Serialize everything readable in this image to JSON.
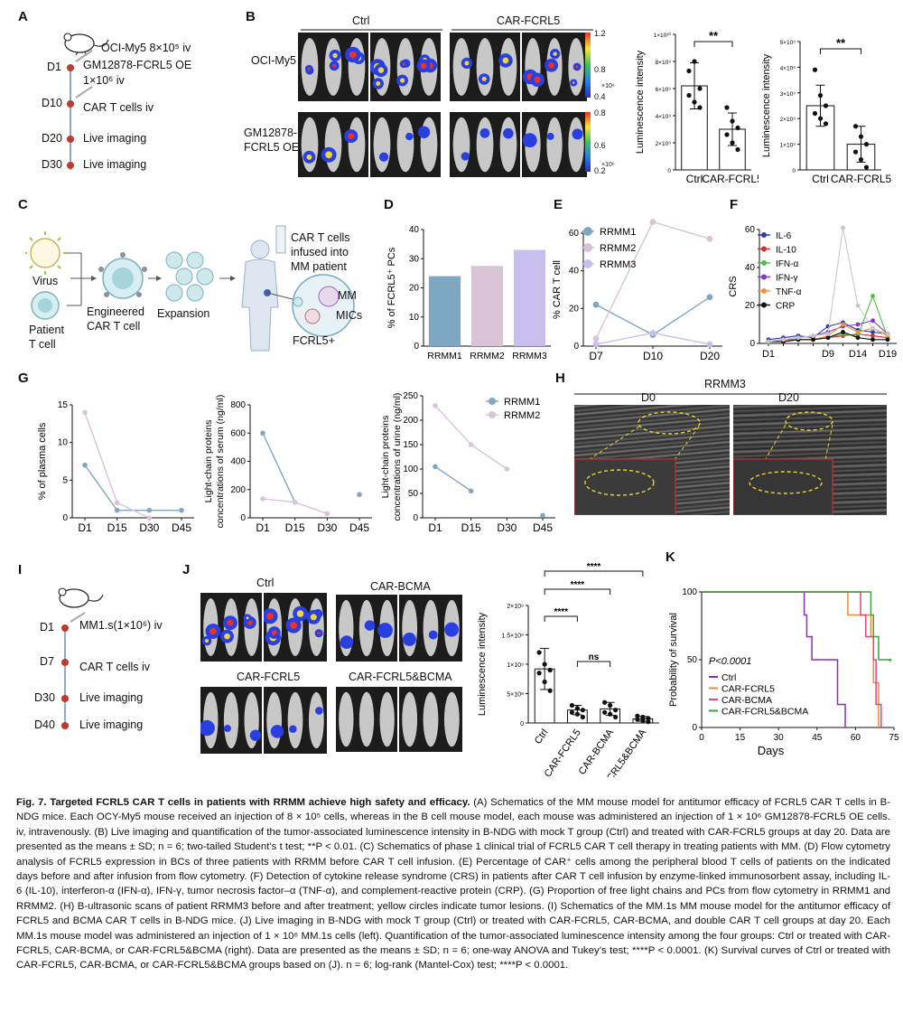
{
  "panels": {
    "A": "A",
    "B": "B",
    "C": "C",
    "D": "D",
    "E": "E",
    "F": "F",
    "G": "G",
    "H": "H",
    "I": "I",
    "J": "J",
    "K": "K"
  },
  "panelA": {
    "inject1": "OCI-My5 8×10⁵ iv",
    "inject2": "GM12878-FCRL5 OE",
    "inject3": "1×10⁶ iv",
    "timeline": [
      {
        "day": "D1",
        "event": ""
      },
      {
        "day": "D10",
        "event": "CAR T cells iv"
      },
      {
        "day": "D20",
        "event": "Live imaging"
      },
      {
        "day": "D30",
        "event": "Live imaging"
      }
    ]
  },
  "panelB": {
    "group_ctrl": "Ctrl",
    "group_car": "CAR-FCRL5",
    "row1": "OCI-My5",
    "row2a": "GM12878-",
    "row2b": "FCRL5 OE",
    "scale1": {
      "max": "1.2",
      "mid": "0.8",
      "min": "0.4",
      "unit": "×10⁶"
    },
    "scale2": {
      "max": "0.8",
      "mid": "0.6",
      "min": "0.2",
      "unit": "×10⁶"
    },
    "sig": "**"
  },
  "panelC": {
    "virus": "Virus",
    "patient1": "Patient",
    "patient2": "T cell",
    "engineered1": "Engineered",
    "engineered2": "CAR T cell",
    "expansion": "Expansion",
    "infused1": "CAR T cells",
    "infused2": "infused into",
    "infused3": "MM patient",
    "mm": "MM",
    "mics": "MICs",
    "fcrl5": "FCRL5+"
  },
  "panelH": {
    "title": "RRMM3",
    "d0": "D0",
    "d20": "D20"
  },
  "panelI": {
    "inject": "MM1.s(1×10⁶) iv",
    "timeline": [
      {
        "day": "D1",
        "event": ""
      },
      {
        "day": "D7",
        "event": "CAR T cells iv"
      },
      {
        "day": "D30",
        "event": "Live imaging"
      },
      {
        "day": "D40",
        "event": "Live imaging"
      }
    ]
  },
  "panelJ": {
    "ctrl": "Ctrl",
    "bcma": "CAR-BCMA",
    "fcrl5": "CAR-FCRL5",
    "both": "CAR-FCRL5&BCMA"
  },
  "chart_data": [
    {
      "id": "B1",
      "type": "bar",
      "categories": [
        "Ctrl",
        "CAR-FCRL5"
      ],
      "values": [
        6200000000.0,
        3000000000.0
      ],
      "points": [
        [
          7300000000.0,
          8000000000.0,
          6000000000.0,
          5500000000.0,
          5000000000.0,
          4600000000.0
        ],
        [
          4600000000.0,
          3600000000.0,
          3100000000.0,
          2600000000.0,
          2000000000.0,
          1500000000.0
        ]
      ],
      "errors": [
        1700000000.0,
        1200000000.0
      ],
      "ylabel": "Luminescence intensity",
      "ylim": [
        0,
        10000000000.0
      ],
      "yticks": [
        "0",
        "2×10⁹",
        "4×10⁹",
        "6×10⁹",
        "8×10⁹",
        "1×10¹⁰"
      ],
      "sig": "**"
    },
    {
      "id": "B2",
      "type": "bar",
      "categories": [
        "Ctrl",
        "CAR-FCRL5"
      ],
      "values": [
        2500000000.0,
        1000000000.0
      ],
      "points": [
        [
          3900000000.0,
          2900000000.0,
          2500000000.0,
          2200000000.0,
          2000000000.0,
          1800000000.0
        ],
        [
          1700000000.0,
          1300000000.0,
          1000000000.0,
          700000000.0,
          400000000.0,
          100000000.0
        ]
      ],
      "errors": [
        800000000.0,
        700000000.0
      ],
      "ylabel": "Luminescence intensity",
      "ylim": [
        0,
        5000000000.0
      ],
      "yticks": [
        "0",
        "1×10⁹",
        "2×10⁹",
        "3×10⁹",
        "4×10⁹",
        "5×10⁹"
      ],
      "sig": "**"
    },
    {
      "id": "D",
      "type": "bar",
      "categories": [
        "RRMM1",
        "RRMM2",
        "RRMM3"
      ],
      "values": [
        24,
        27.5,
        33
      ],
      "colors": [
        "#7fa7c2",
        "#d9c4d6",
        "#c9bfee"
      ],
      "ylabel": "% of FCRL5⁺ PCs",
      "ylim": [
        0,
        40
      ],
      "yticks": [
        "0",
        "10",
        "20",
        "30",
        "40"
      ]
    },
    {
      "id": "E",
      "type": "line",
      "x": [
        "D7",
        "D10",
        "D20"
      ],
      "ylabel": "% CAR T cell",
      "ylim": [
        0,
        60
      ],
      "yticks": [
        "0",
        "20",
        "40",
        "60"
      ],
      "series": [
        {
          "name": "RRMM1",
          "values": [
            22,
            6,
            26
          ],
          "color": "#7fa7c2"
        },
        {
          "name": "RRMM2",
          "values": [
            4,
            66,
            57
          ],
          "color": "#d9c4d6"
        },
        {
          "name": "RRMM3",
          "values": [
            1,
            7,
            1
          ],
          "color": "#c9bfee"
        }
      ]
    },
    {
      "id": "F",
      "type": "line",
      "x": [
        "D1",
        "D3",
        "D5",
        "D7",
        "D9",
        "D11",
        "D14",
        "D16",
        "D19"
      ],
      "xticks": [
        "D1",
        "D9",
        "D14",
        "D19"
      ],
      "ylabel": "CRS",
      "ylim": [
        0,
        60
      ],
      "yticks": [
        "0",
        "20",
        "40",
        "60"
      ],
      "series": [
        {
          "name": "IL-6",
          "values": [
            2,
            3,
            4,
            3,
            9,
            11,
            7,
            6,
            5
          ],
          "color": "#2b3bb0"
        },
        {
          "name": "IL-10",
          "values": [
            1,
            2,
            2,
            2,
            3,
            4,
            5,
            4,
            3
          ],
          "color": "#d9302a"
        },
        {
          "name": "IFN-α",
          "values": [
            1,
            1,
            2,
            2,
            3,
            5,
            4,
            25,
            3
          ],
          "color": "#4fbf45"
        },
        {
          "name": "IFN-γ",
          "values": [
            1,
            2,
            3,
            4,
            6,
            9,
            10,
            12,
            5
          ],
          "color": "#7a3fc2"
        },
        {
          "name": "TNF-α",
          "values": [
            1,
            1,
            2,
            2,
            4,
            10,
            6,
            8,
            4
          ],
          "color": "#f09235"
        },
        {
          "name": "CRP",
          "values": [
            1,
            1,
            2,
            2,
            3,
            6,
            3,
            2,
            2
          ],
          "color": "#111111"
        },
        {
          "name": "",
          "values": [
            1,
            2,
            3,
            4,
            5,
            61,
            20,
            8,
            5
          ],
          "color": "#c7c7c7"
        }
      ]
    },
    {
      "id": "G1",
      "type": "line",
      "x": [
        "D1",
        "D15",
        "D30",
        "D45"
      ],
      "ylabel": "% of plasma cells",
      "ylim": [
        0,
        15
      ],
      "yticks": [
        "0",
        "5",
        "10",
        "15"
      ],
      "series": [
        {
          "name": "RRMM1",
          "values": [
            7,
            1,
            1,
            1
          ],
          "color": "#7fa7c2"
        },
        {
          "name": "RRMM2",
          "values": [
            14,
            2,
            0,
            null
          ],
          "color": "#d9c4d6"
        }
      ]
    },
    {
      "id": "G2",
      "type": "line",
      "x": [
        "D1",
        "D15",
        "D30",
        "D45"
      ],
      "ylabel": "Light-chain proteins concentrations of serum (ng/ml)",
      "ylim": [
        0,
        800
      ],
      "yticks": [
        "0",
        "200",
        "400",
        "600",
        "800"
      ],
      "series": [
        {
          "name": "RRMM1",
          "values": [
            600,
            110,
            null,
            165
          ],
          "color": "#7fa7c2"
        },
        {
          "name": "RRMM2",
          "values": [
            135,
            110,
            30,
            null
          ],
          "color": "#d9c4d6"
        }
      ]
    },
    {
      "id": "G3",
      "type": "line",
      "x": [
        "D1",
        "D15",
        "D30",
        "D45"
      ],
      "ylabel": "Light-chain proteins concentrations of urine (ng/ml)",
      "ylim": [
        0,
        250
      ],
      "yticks": [
        "0",
        "50",
        "100",
        "150",
        "200",
        "250"
      ],
      "series": [
        {
          "name": "RRMM1",
          "values": [
            105,
            55,
            null,
            5
          ],
          "color": "#7fa7c2"
        },
        {
          "name": "RRMM2",
          "values": [
            230,
            150,
            100,
            null
          ],
          "color": "#d9c4d6"
        }
      ]
    },
    {
      "id": "J",
      "type": "bar",
      "categories": [
        "Ctrl",
        "CAR-FCRL5",
        "CAR-BCMA",
        "CAR-FCRL5&BCMA"
      ],
      "values": [
        920000000.0,
        220000000.0,
        240000000.0,
        70000000.0
      ],
      "errors": [
        350000000.0,
        80000000.0,
        110000000.0,
        40000000.0
      ],
      "points": [
        [
          1200000000.0,
          1000000000.0,
          900000000.0,
          850000000.0,
          700000000.0,
          550000000.0
        ],
        [
          300000000.0,
          250000000.0,
          220000000.0,
          180000000.0,
          150000000.0,
          100000000.0
        ],
        [
          350000000.0,
          300000000.0,
          220000000.0,
          180000000.0,
          150000000.0,
          100000000.0
        ],
        [
          120000000.0,
          100000000.0,
          80000000.0,
          60000000.0,
          40000000.0,
          20000000.0
        ]
      ],
      "ylabel": "Luminescence intensity",
      "ylim": [
        0,
        2000000000.0
      ],
      "yticks": [
        "0",
        "5×10⁸",
        "1×10⁹",
        "1.5×10⁹",
        "2×10⁹"
      ],
      "sigs": [
        "****",
        "****",
        "****",
        "ns"
      ]
    },
    {
      "id": "K",
      "type": "line",
      "xlabel": "Days",
      "ylabel": "Probability of survival",
      "xlim": [
        0,
        75
      ],
      "ylim": [
        0,
        100
      ],
      "xticks": [
        "0",
        "15",
        "30",
        "45",
        "60",
        "75"
      ],
      "yticks": [
        "0",
        "50",
        "100"
      ],
      "annotation": "P<0.0001",
      "series": [
        {
          "name": "Ctrl",
          "color": "#8a2fb5",
          "steps": [
            [
              0,
              100
            ],
            [
              40,
              100
            ],
            [
              40,
              83
            ],
            [
              41,
              83
            ],
            [
              41,
              67
            ],
            [
              43,
              67
            ],
            [
              43,
              50
            ],
            [
              53,
              50
            ],
            [
              53,
              17
            ],
            [
              56,
              17
            ],
            [
              56,
              0
            ]
          ]
        },
        {
          "name": "CAR-FCRL5",
          "color": "#f0883a",
          "steps": [
            [
              0,
              100
            ],
            [
              57,
              100
            ],
            [
              57,
              83
            ],
            [
              66,
              83
            ],
            [
              66,
              67
            ],
            [
              67,
              67
            ],
            [
              67,
              33
            ],
            [
              69,
              33
            ],
            [
              69,
              0
            ]
          ]
        },
        {
          "name": "CAR-BCMA",
          "color": "#e0457a",
          "steps": [
            [
              0,
              100
            ],
            [
              62,
              100
            ],
            [
              62,
              83
            ],
            [
              64,
              83
            ],
            [
              64,
              67
            ],
            [
              67,
              67
            ],
            [
              67,
              50
            ],
            [
              68,
              50
            ],
            [
              68,
              17
            ],
            [
              70,
              17
            ],
            [
              70,
              0
            ]
          ]
        },
        {
          "name": "CAR-FCRL5&BCMA",
          "color": "#3aa33a",
          "steps": [
            [
              0,
              100
            ],
            [
              66,
              100
            ],
            [
              66,
              83
            ],
            [
              67,
              83
            ],
            [
              67,
              67
            ],
            [
              69,
              67
            ],
            [
              69,
              50
            ],
            [
              74,
              50
            ]
          ]
        }
      ]
    }
  ],
  "caption": {
    "title": "Fig. 7. Targeted FCRL5 CAR T cells in patients with RRMM achieve high safety and efficacy.",
    "body": " (A) Schematics of the MM mouse model for antitumor efficacy of FCRL5 CAR T cells in B-NDG mice. Each OCY-My5 mouse received an injection of 8 × 10⁵ cells, whereas in the B cell mouse model, each mouse was administered an injection of 1 × 10⁶ GM12878-FCRL5 OE cells. iv, intravenously. (B) Live imaging and quantification of the tumor-associated luminescence intensity in B-NDG with mock T group (Ctrl) and treated with CAR-FCRL5 groups at day 20. Data are presented as the means ± SD; n = 6; two-tailed Student’s t test; **P < 0.01. (C) Schematics of phase 1 clinical trial of FCRL5 CAR T cell therapy in treating patients with MM. (D) Flow cytometry analysis of FCRL5 expression in BCs of three patients with RRMM before CAR T cell infusion. (E) Percentage of CAR⁺ cells among the peripheral blood T cells of patients on the indicated days before and after infusion from flow cytometry. (F) Detection of cytokine release syndrome (CRS) in patients after CAR T cell infusion by enzyme-linked immunosorbent assay, including IL-6 (IL-10), interferon-α (IFN-α), IFN-γ, tumor necrosis factor–α (TNF-α), and complement-reactive protein (CRP). (G) Proportion of free light chains and PCs from flow cytometry in RRMM1 and RRMM2. (H) B-ultrasonic scans of patient RRMM3 before and after treatment; yellow circles indicate tumor lesions. (I) Schematics of the MM.1s MM mouse model for the antitumor efficacy of FCRL5 and BCMA CAR T cells in B-NDG mice. (J) Live imaging in B-NDG with mock T group (Ctrl) or treated with CAR-FCRL5, CAR-BCMA, and double CAR T cell groups at day 20. Each MM.1s mouse model was administered an injection of 1 × 10⁶ MM.1s cells (left). Quantification of the tumor-associated luminescence intensity among the four groups: Ctrl or treated with CAR-FCRL5, CAR-BCMA, or CAR-FCRL5&BCMA (right). Data are presented as the means ± SD; n = 6; one-way ANOVA and Tukey’s test; ****P < 0.0001. (K) Survival curves of Ctrl or treated with CAR-FCRL5, CAR-BCMA, or CAR-FCRL5&BCMA groups based on (J). n = 6; log-rank (Mantel-Cox) test; ****P < 0.0001."
  }
}
